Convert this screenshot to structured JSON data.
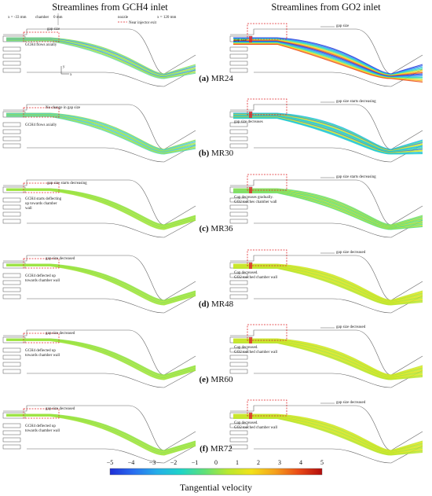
{
  "columns": {
    "left": "Streamlines from GCH4 inlet",
    "right": "Streamlines from GO2 inlet"
  },
  "panels": [
    {
      "letter": "(a)",
      "label": "MR24",
      "left_notes": [
        "x = -33 mm",
        "chamber",
        "0 mm",
        "nozzle",
        "x = 120 mm",
        "gap size",
        "Near injector exit",
        "GCH4 flows axially"
      ],
      "right_notes": [
        "gap size",
        "gap size"
      ]
    },
    {
      "letter": "(b)",
      "label": "MR30",
      "left_notes": [
        "No change in gap size",
        "GCH4 flows axially"
      ],
      "right_notes": [
        "gap size starts decreasing",
        "gap size decreases"
      ]
    },
    {
      "letter": "(c)",
      "label": "MR36",
      "left_notes": [
        "gap size starts decreasing",
        "GCH4 starts deflecting",
        "up towards chamber",
        "wall"
      ],
      "right_notes": [
        "gap size starts decreasing",
        "Gap decreases gradually.",
        "GO2 touches chamber wall"
      ]
    },
    {
      "letter": "(d)",
      "label": "MR48",
      "left_notes": [
        "gap size decreased",
        "GCH4 deflected up",
        "towards chamber wall"
      ],
      "right_notes": [
        "gap size decreased",
        "Gap decreased.",
        "GO2 touched chamber wall"
      ]
    },
    {
      "letter": "(e)",
      "label": "MR60",
      "left_notes": [
        "gap size decreased",
        "GCH4 deflected up",
        "towards chamber wall"
      ],
      "right_notes": [
        "gap size decreased",
        "Gap decreased.",
        "GO2 touched chamber wall"
      ]
    },
    {
      "letter": "(f)",
      "label": "MR72",
      "left_notes": [
        "gap size decreased",
        "GCH4 deflected up",
        "towards chamber wall"
      ],
      "right_notes": [
        "gap size decreased",
        "Gap decreased.",
        "GO2 touched chamber wall"
      ]
    }
  ],
  "axis_labels": {
    "y": "y",
    "x": "x"
  },
  "colorbar": {
    "title": "Tangential velocity",
    "ticks": [
      "−5",
      "−4",
      "−3",
      "−2",
      "−1",
      "0",
      "1",
      "2",
      "3",
      "4",
      "5"
    ],
    "min": -5,
    "max": 5,
    "colors": [
      "#1f2fd6",
      "#2a6ef0",
      "#25aee8",
      "#1fd4c8",
      "#5fe07a",
      "#b8e830",
      "#f2e21a",
      "#f5a11c",
      "#ea4a17",
      "#b20d0d"
    ]
  },
  "colors": {
    "gch4_stream": "#8fe04a",
    "accent_box": "#e0262a"
  }
}
